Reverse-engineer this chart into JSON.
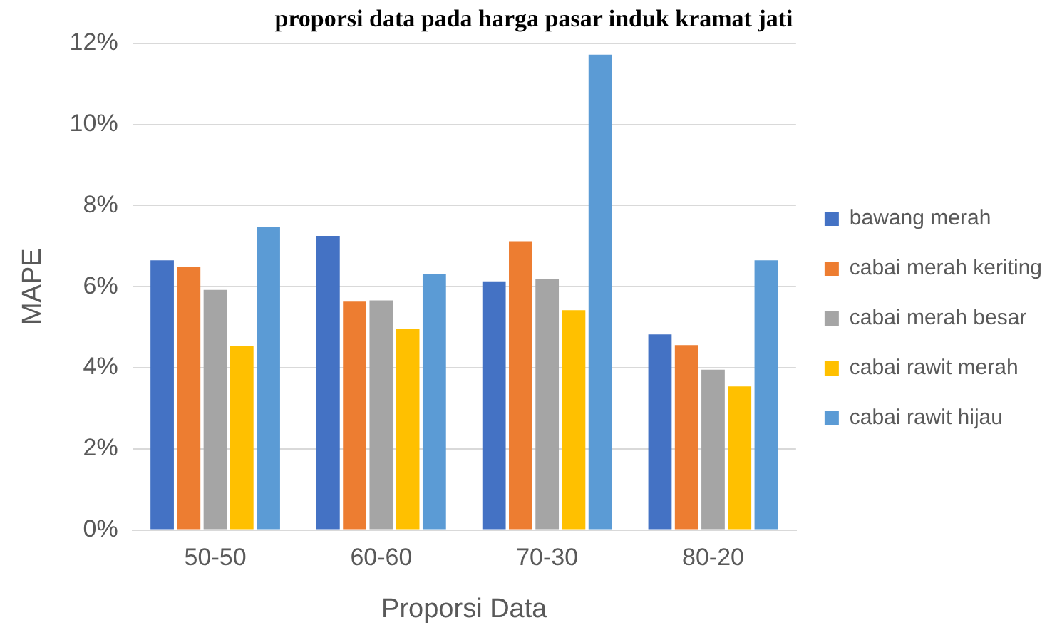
{
  "chart_data": {
    "type": "bar",
    "title": "proporsi data pada harga pasar induk kramat jati",
    "xlabel": "Proporsi Data",
    "ylabel": "MAPE",
    "categories": [
      "50-50",
      "60-60",
      "70-30",
      "80-20"
    ],
    "series": [
      {
        "name": "bawang merah",
        "color": "#4472c4",
        "values": [
          6.65,
          7.25,
          6.13,
          4.82
        ]
      },
      {
        "name": "cabai merah keriting",
        "color": "#ed7d31",
        "values": [
          6.49,
          5.63,
          7.12,
          4.56
        ]
      },
      {
        "name": "cabai merah besar",
        "color": "#a5a5a5",
        "values": [
          5.92,
          5.66,
          6.18,
          3.95
        ]
      },
      {
        "name": "cabai rawit merah",
        "color": "#ffc000",
        "values": [
          4.53,
          4.95,
          5.42,
          3.54
        ]
      },
      {
        "name": "cabai rawit hijau",
        "color": "#5b9bd5",
        "values": [
          7.48,
          6.32,
          11.72,
          6.65
        ]
      }
    ],
    "ylim": [
      0,
      12
    ],
    "yticks": [
      {
        "value": 0,
        "label": "0%"
      },
      {
        "value": 2,
        "label": "2%"
      },
      {
        "value": 4,
        "label": "4%"
      },
      {
        "value": 6,
        "label": "6%"
      },
      {
        "value": 8,
        "label": "8%"
      },
      {
        "value": 10,
        "label": "10%"
      },
      {
        "value": 12,
        "label": "12%"
      }
    ],
    "grid": "y",
    "legend": "right"
  }
}
